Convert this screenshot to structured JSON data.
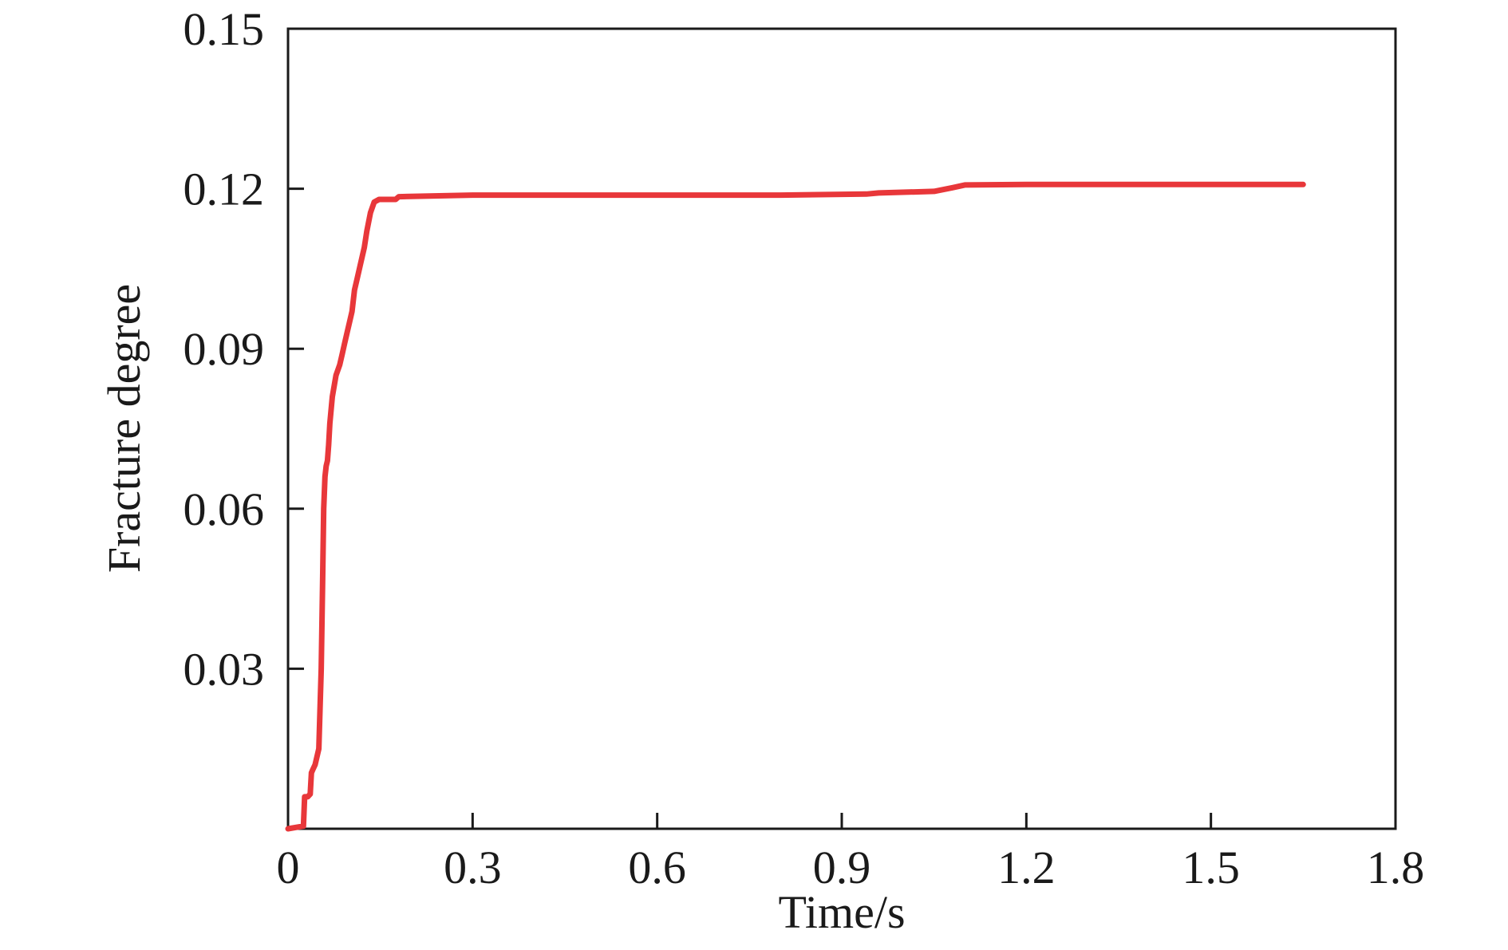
{
  "chart_data": {
    "type": "line",
    "title": "",
    "xlabel": "Time/s",
    "ylabel": "Fracture degree",
    "xlim": [
      0,
      1.8
    ],
    "ylim": [
      0,
      0.15
    ],
    "x_ticks": [
      0,
      0.3,
      0.6,
      0.9,
      1.2,
      1.5,
      1.8
    ],
    "x_tick_labels": [
      "0",
      "0.3",
      "0.6",
      "0.9",
      "1.2",
      "1.5",
      "1.8"
    ],
    "y_ticks": [
      0.03,
      0.06,
      0.09,
      0.12,
      0.15
    ],
    "y_tick_labels": [
      "0.03",
      "0.06",
      "0.09",
      "0.12",
      "0.15"
    ],
    "grid": false,
    "legend": "none",
    "series": [
      {
        "color": "#e8373a",
        "x": [
          0,
          0.025,
          0.027,
          0.032,
          0.036,
          0.038,
          0.04,
          0.044,
          0.05,
          0.054,
          0.056,
          0.058,
          0.06,
          0.062,
          0.064,
          0.066,
          0.068,
          0.072,
          0.078,
          0.084,
          0.088,
          0.092,
          0.096,
          0.1,
          0.104,
          0.108,
          0.112,
          0.118,
          0.124,
          0.128,
          0.134,
          0.14,
          0.148,
          0.16,
          0.175,
          0.18,
          0.3,
          0.6,
          0.8,
          0.94,
          0.96,
          1.05,
          1.08,
          1.1,
          1.2,
          1.65
        ],
        "y": [
          0,
          0.0005,
          0.006,
          0.006,
          0.0065,
          0.0105,
          0.011,
          0.012,
          0.015,
          0.03,
          0.045,
          0.06,
          0.066,
          0.068,
          0.069,
          0.072,
          0.076,
          0.081,
          0.085,
          0.087,
          0.089,
          0.091,
          0.093,
          0.095,
          0.097,
          0.101,
          0.103,
          0.106,
          0.109,
          0.112,
          0.1155,
          0.1175,
          0.118,
          0.118,
          0.118,
          0.1185,
          0.1188,
          0.1188,
          0.1188,
          0.119,
          0.1192,
          0.1195,
          0.1202,
          0.1207,
          0.1208,
          0.1208
        ]
      }
    ]
  }
}
